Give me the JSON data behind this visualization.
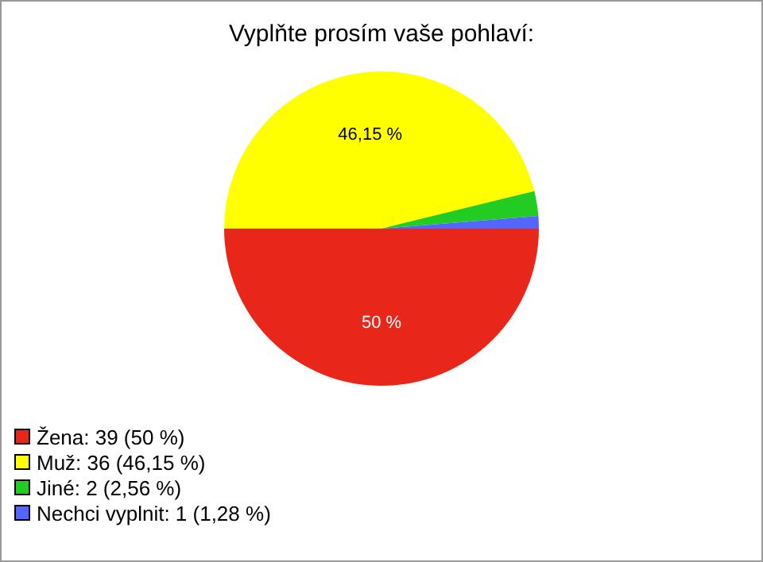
{
  "chart_data": {
    "type": "pie",
    "title": "Vyplňte prosím vaše pohlaví:",
    "categories": [
      "Žena: 39 (50 %)",
      "Muž: 36 (46,15 %)",
      "Jiné: 2 (2,56 %)",
      "Nechci vyplnit: 1 (1,28 %)"
    ],
    "values": [
      50,
      46.15,
      2.56,
      1.28
    ],
    "colors": [
      "#e8261a",
      "#ffff00",
      "#22cc22",
      "#5566ff"
    ],
    "value_labels": [
      "50 %",
      "46,15 %",
      null,
      null
    ],
    "legend": "bottom left"
  }
}
